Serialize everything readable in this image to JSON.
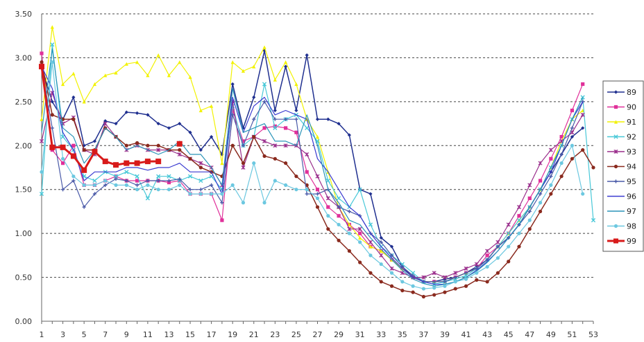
{
  "chart_data": {
    "type": "line",
    "title": "",
    "xlabel": "",
    "ylabel": "",
    "x": [
      1,
      2,
      3,
      4,
      5,
      6,
      7,
      8,
      9,
      10,
      11,
      12,
      13,
      14,
      15,
      16,
      17,
      18,
      19,
      20,
      21,
      22,
      23,
      24,
      25,
      26,
      27,
      28,
      29,
      30,
      31,
      32,
      33,
      34,
      35,
      36,
      37,
      38,
      39,
      40,
      41,
      42,
      43,
      44,
      45,
      46,
      47,
      48,
      49,
      50,
      51,
      52,
      53
    ],
    "x_tick_labels": [
      "1",
      "3",
      "5",
      "7",
      "9",
      "11",
      "13",
      "15",
      "17",
      "19",
      "21",
      "23",
      "25",
      "27",
      "29",
      "31",
      "33",
      "35",
      "37",
      "39",
      "41",
      "43",
      "45",
      "47",
      "49",
      "51",
      "53"
    ],
    "y_tick_labels": [
      "0.00",
      "0.50",
      "1.00",
      "1.50",
      "2.00",
      "2.50",
      "3.00",
      "3.50"
    ],
    "ylim": [
      0,
      3.5
    ],
    "grid": "horizontal dashed",
    "legend_position": "right",
    "series": [
      {
        "name": "89",
        "color": "#1f2f8f",
        "marker": "diamond",
        "width": 1.5,
        "values": [
          2.9,
          2.5,
          2.3,
          2.55,
          2.0,
          2.05,
          2.28,
          2.25,
          2.38,
          2.37,
          2.35,
          2.25,
          2.2,
          2.25,
          2.15,
          1.95,
          2.1,
          1.9,
          2.7,
          2.2,
          2.55,
          3.08,
          2.4,
          2.9,
          2.4,
          3.03,
          2.3,
          2.3,
          2.25,
          2.12,
          1.5,
          1.45,
          0.95,
          0.85,
          0.62,
          0.5,
          0.45,
          0.45,
          0.48,
          0.5,
          0.55,
          0.62,
          0.7,
          0.85,
          0.95,
          1.1,
          1.3,
          1.5,
          1.7,
          1.9,
          2.1,
          2.2,
          null
        ]
      },
      {
        "name": "90",
        "color": "#e0309a",
        "marker": "square",
        "width": 1.2,
        "values": [
          3.05,
          1.95,
          1.8,
          2.0,
          1.55,
          1.55,
          1.6,
          1.65,
          1.6,
          1.6,
          1.6,
          1.6,
          1.58,
          1.6,
          1.45,
          1.45,
          1.45,
          1.15,
          2.4,
          2.05,
          2.1,
          2.2,
          2.22,
          2.2,
          2.15,
          1.7,
          1.5,
          1.3,
          1.2,
          1.1,
          1.0,
          0.85,
          0.8,
          0.7,
          0.6,
          0.5,
          0.45,
          0.45,
          0.45,
          0.5,
          0.55,
          0.6,
          0.75,
          0.85,
          1.0,
          1.2,
          1.4,
          1.6,
          1.85,
          2.1,
          2.4,
          2.7,
          null
        ]
      },
      {
        "name": "91",
        "color": "#f2f200",
        "marker": "triangle",
        "width": 1.2,
        "values": [
          2.3,
          3.35,
          2.7,
          2.82,
          2.5,
          2.7,
          2.8,
          2.83,
          2.93,
          2.95,
          2.8,
          3.03,
          2.8,
          2.95,
          2.78,
          2.4,
          2.45,
          1.8,
          2.95,
          2.85,
          2.9,
          3.12,
          2.75,
          2.95,
          2.7,
          2.3,
          2.1,
          1.7,
          1.3,
          1.1,
          0.95,
          0.85,
          0.8,
          0.7,
          0.6,
          0.5,
          0.45,
          0.45,
          0.45,
          0.5,
          0.55,
          0.6,
          0.7,
          0.85,
          1.0,
          1.15,
          1.3,
          1.5,
          1.75,
          2.05,
          2.3,
          2.4,
          null
        ]
      },
      {
        "name": "92",
        "color": "#48c8d8",
        "marker": "x",
        "width": 1.2,
        "values": [
          1.45,
          3.15,
          2.1,
          1.95,
          1.65,
          1.6,
          1.7,
          1.65,
          1.7,
          1.65,
          1.4,
          1.65,
          1.65,
          1.6,
          1.65,
          1.6,
          1.65,
          1.5,
          2.45,
          2.0,
          2.1,
          2.7,
          2.2,
          2.3,
          2.35,
          2.2,
          2.05,
          1.6,
          1.4,
          1.3,
          1.5,
          1.1,
          0.85,
          0.75,
          0.65,
          0.55,
          0.45,
          0.42,
          0.45,
          0.48,
          0.52,
          0.6,
          0.7,
          0.85,
          1.0,
          1.15,
          1.3,
          1.5,
          1.75,
          2.0,
          2.3,
          2.55,
          1.15
        ]
      },
      {
        "name": "93",
        "color": "#9a2e8c",
        "marker": "star",
        "width": 1.2,
        "values": [
          2.05,
          2.6,
          2.25,
          2.32,
          1.95,
          1.9,
          2.25,
          2.1,
          1.95,
          2.0,
          1.95,
          1.95,
          1.95,
          1.9,
          1.85,
          1.8,
          1.75,
          1.55,
          2.5,
          1.75,
          2.1,
          2.05,
          2.0,
          2.0,
          2.0,
          1.9,
          1.65,
          1.4,
          1.3,
          1.05,
          1.05,
          0.9,
          0.75,
          0.6,
          0.55,
          0.5,
          0.5,
          0.55,
          0.5,
          0.55,
          0.6,
          0.65,
          0.8,
          0.9,
          1.1,
          1.3,
          1.55,
          1.8,
          1.95,
          2.05,
          2.15,
          2.35,
          null
        ]
      },
      {
        "name": "94",
        "color": "#8a2a1e",
        "marker": "circle",
        "width": 1.5,
        "values": [
          2.95,
          2.35,
          2.3,
          2.3,
          1.95,
          1.95,
          2.2,
          2.1,
          2.0,
          2.03,
          2.0,
          2.0,
          1.95,
          1.95,
          1.85,
          1.75,
          1.7,
          1.65,
          2.0,
          1.8,
          2.1,
          1.88,
          1.85,
          1.8,
          1.65,
          1.55,
          1.3,
          1.05,
          0.92,
          0.8,
          0.67,
          0.55,
          0.45,
          0.4,
          0.35,
          0.33,
          0.28,
          0.3,
          0.33,
          0.37,
          0.4,
          0.47,
          0.45,
          0.55,
          0.68,
          0.85,
          1.05,
          1.25,
          1.45,
          1.65,
          1.85,
          1.95,
          1.75
        ]
      },
      {
        "name": "95",
        "color": "#4a5aa8",
        "marker": "plus",
        "width": 1.2,
        "values": [
          2.9,
          2.2,
          1.5,
          1.6,
          1.3,
          1.45,
          1.55,
          1.62,
          1.6,
          1.55,
          1.6,
          1.6,
          1.6,
          1.62,
          1.5,
          1.5,
          1.55,
          1.35,
          2.35,
          2.0,
          2.3,
          2.5,
          2.3,
          2.3,
          2.3,
          1.45,
          1.45,
          1.5,
          1.3,
          1.25,
          1.2,
          1.0,
          0.9,
          0.75,
          0.62,
          0.52,
          0.45,
          0.45,
          0.45,
          0.5,
          0.55,
          0.6,
          0.7,
          0.85,
          0.95,
          1.1,
          1.25,
          1.45,
          1.65,
          1.9,
          2.2,
          2.5,
          null
        ]
      },
      {
        "name": "96",
        "color": "#3a3ad0",
        "marker": "none",
        "width": 1.2,
        "values": [
          2.9,
          2.65,
          2.15,
          1.95,
          1.6,
          1.7,
          1.7,
          1.7,
          1.75,
          1.75,
          1.72,
          1.75,
          1.75,
          1.8,
          1.7,
          1.7,
          1.7,
          1.45,
          2.55,
          2.15,
          2.45,
          2.55,
          2.35,
          2.4,
          2.35,
          2.3,
          1.85,
          1.7,
          1.5,
          1.3,
          1.2,
          1.0,
          0.85,
          0.72,
          0.6,
          0.5,
          0.45,
          0.42,
          0.42,
          0.45,
          0.5,
          0.58,
          0.68,
          0.8,
          0.95,
          1.1,
          1.3,
          1.5,
          1.7,
          2.0,
          2.3,
          2.5,
          null
        ]
      },
      {
        "name": "97",
        "color": "#2a94b8",
        "marker": "none",
        "width": 1.2,
        "values": [
          2.15,
          3.1,
          2.2,
          2.1,
          1.8,
          1.95,
          2.2,
          2.1,
          1.95,
          2.0,
          1.95,
          1.9,
          1.95,
          2.05,
          1.9,
          1.9,
          1.75,
          1.55,
          2.65,
          2.15,
          2.2,
          2.25,
          2.05,
          2.05,
          2.0,
          2.35,
          2.0,
          1.5,
          1.35,
          1.15,
          1.1,
          0.95,
          0.82,
          0.7,
          0.58,
          0.48,
          0.43,
          0.4,
          0.42,
          0.45,
          0.5,
          0.57,
          0.67,
          0.8,
          0.95,
          1.1,
          1.3,
          1.5,
          1.75,
          2.0,
          2.3,
          2.55,
          null
        ]
      },
      {
        "name": "98",
        "color": "#6cc8e0",
        "marker": "circle",
        "width": 1.2,
        "values": [
          1.7,
          2.95,
          1.85,
          1.65,
          1.55,
          1.55,
          1.6,
          1.55,
          1.55,
          1.5,
          1.55,
          1.5,
          1.5,
          1.55,
          1.45,
          1.45,
          1.45,
          1.45,
          1.55,
          1.35,
          1.8,
          1.35,
          1.6,
          1.55,
          1.5,
          1.5,
          1.4,
          1.2,
          1.1,
          1.0,
          0.9,
          0.75,
          0.65,
          0.55,
          0.45,
          0.4,
          0.37,
          0.38,
          0.4,
          0.45,
          0.48,
          0.55,
          0.62,
          0.72,
          0.85,
          1.0,
          1.15,
          1.35,
          1.55,
          1.8,
          2.0,
          1.45,
          null
        ]
      },
      {
        "name": "99",
        "color": "#d81a1a",
        "marker": "square",
        "width": 3,
        "values": [
          2.9,
          1.98,
          1.98,
          1.88,
          1.72,
          1.93,
          1.82,
          1.78,
          1.8,
          1.8,
          1.82,
          1.82,
          null,
          2.02,
          null,
          null,
          null,
          null,
          null,
          null,
          null,
          null,
          null,
          null,
          null,
          null,
          null,
          null,
          null,
          null,
          null,
          null,
          null,
          null,
          null,
          null,
          null,
          null,
          null,
          null,
          null,
          null,
          null,
          null,
          null,
          null,
          null,
          null,
          null,
          null,
          null,
          null,
          null
        ]
      }
    ]
  }
}
